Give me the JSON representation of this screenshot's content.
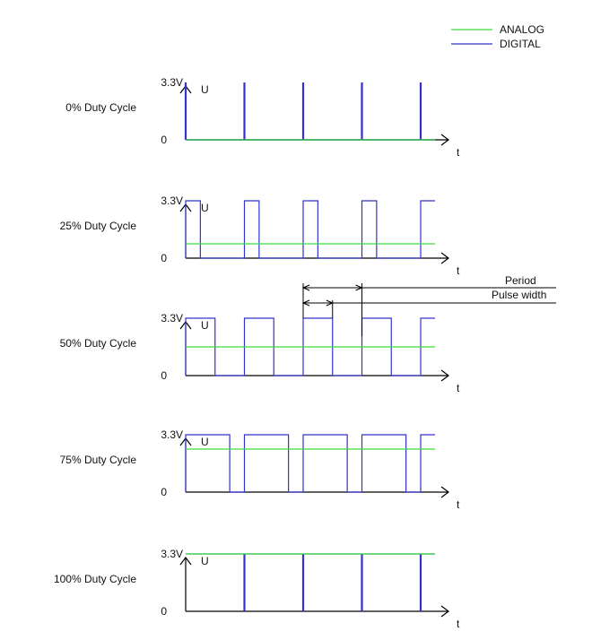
{
  "legend": {
    "analog": {
      "label": "ANALOG",
      "color": "#3ddc3d"
    },
    "digital": {
      "label": "DIGITAL",
      "color": "#3333cc"
    }
  },
  "axis_color": "#000000",
  "axis": {
    "y_label": "U",
    "x_label": "t",
    "high_label": "3.3V",
    "zero_label": "0"
  },
  "annotations": {
    "period": "Period",
    "pulse_width": "Pulse width"
  },
  "rows": [
    {
      "label": "0% Duty Cycle",
      "duty": 0.0
    },
    {
      "label": "25% Duty Cycle",
      "duty": 0.25
    },
    {
      "label": "50% Duty Cycle",
      "duty": 0.5
    },
    {
      "label": "75% Duty Cycle",
      "duty": 0.75
    },
    {
      "label": "100% Duty Cycle",
      "duty": 1.0
    }
  ]
}
